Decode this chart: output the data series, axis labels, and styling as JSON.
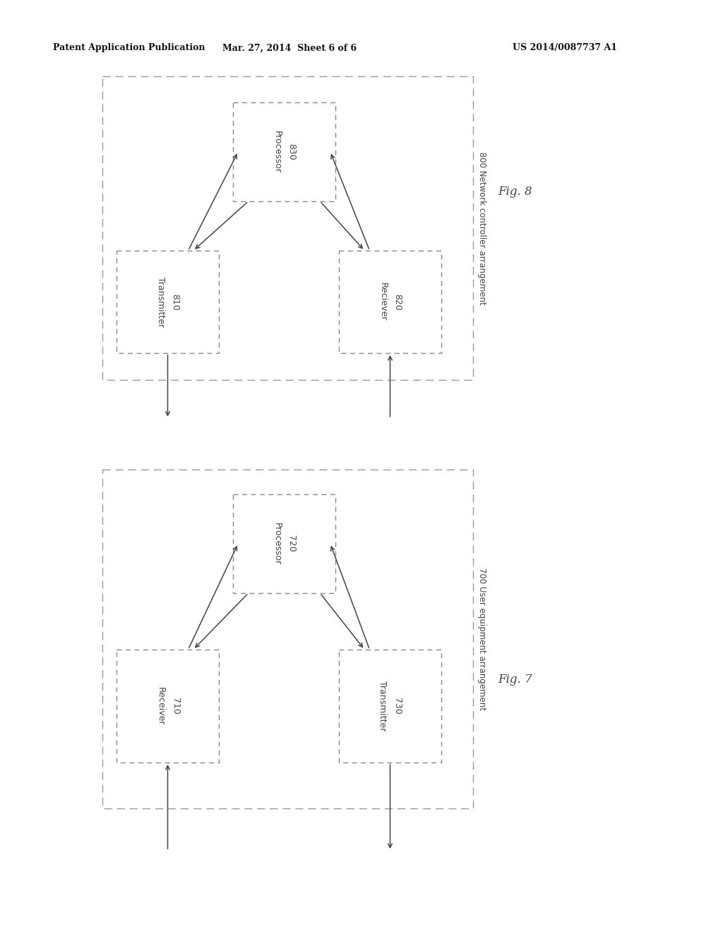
{
  "bg_color": "#ffffff",
  "header_left": "Patent Application Publication",
  "header_mid": "Mar. 27, 2014  Sheet 6 of 6",
  "header_right": "US 2014/0087737 A1",
  "fig8_label": "800 Network controller arrangement",
  "fig8_caption": "Fig. 8",
  "box830_label": "830\nProcessor",
  "box820_label": "820\nReciever",
  "box810_label": "810\nTransmitter",
  "fig7_label": "700 User equipment arrangement",
  "fig7_caption": "Fig. 7",
  "box720_label": "720\nProcessor",
  "box710_label": "710\nReceiver",
  "box730_label": "730\nTransmitter",
  "arrow_color": "#444444",
  "text_color": "#444444",
  "box_edge_color": "#888888",
  "outer_edge_color": "#999999"
}
